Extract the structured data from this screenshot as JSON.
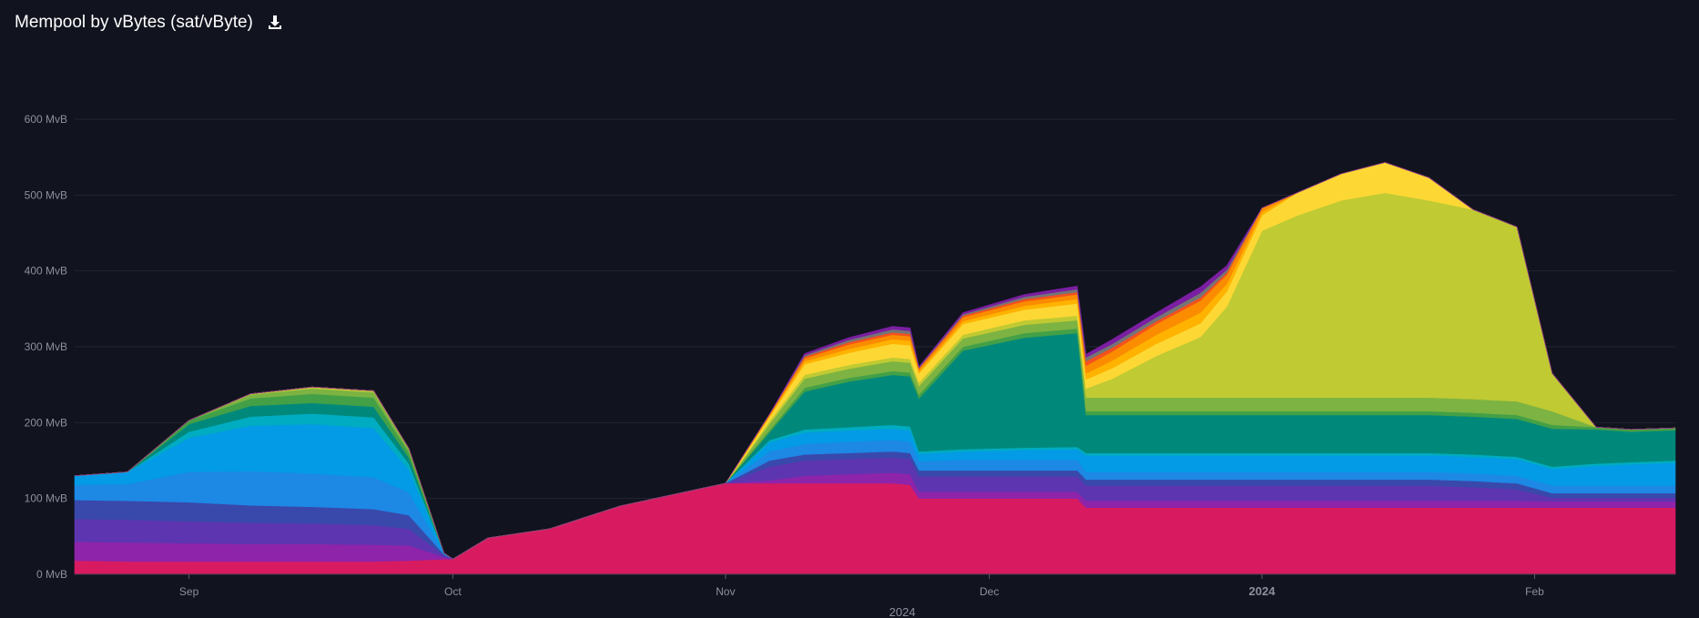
{
  "header": {
    "title": "Mempool by vBytes (sat/vByte)",
    "download_icon": "download-icon"
  },
  "chart_data": {
    "type": "area",
    "stacked": true,
    "title": "Mempool by vBytes (sat/vByte)",
    "xlabel": "2024",
    "ylabel": "",
    "ylim": [
      0,
      600
    ],
    "y_unit": "MvB",
    "y_ticks": [
      "0 MvB",
      "100 MvB",
      "200 MvB",
      "300 MvB",
      "400 MvB",
      "500 MvB",
      "600 MvB"
    ],
    "x_ticks": [
      {
        "label": "Sep",
        "date": "2023-09-01"
      },
      {
        "label": "Oct",
        "date": "2023-10-01"
      },
      {
        "label": "Nov",
        "date": "2023-11-01"
      },
      {
        "label": "Dec",
        "date": "2023-12-01"
      },
      {
        "label": "2024",
        "date": "2024-01-01",
        "bold": true
      },
      {
        "label": "Feb",
        "date": "2024-02-01"
      }
    ],
    "x_range": [
      "2023-08-19",
      "2024-02-17"
    ],
    "grid": true,
    "x": [
      "2023-08-19",
      "2023-08-25",
      "2023-09-01",
      "2023-09-08",
      "2023-09-15",
      "2023-09-22",
      "2023-09-26",
      "2023-09-30",
      "2023-10-01",
      "2023-10-05",
      "2023-10-12",
      "2023-10-20",
      "2023-10-28",
      "2023-11-01",
      "2023-11-06",
      "2023-11-10",
      "2023-11-15",
      "2023-11-20",
      "2023-11-22",
      "2023-11-23",
      "2023-11-28",
      "2023-12-05",
      "2023-12-11",
      "2023-12-12",
      "2023-12-15",
      "2023-12-20",
      "2023-12-25",
      "2023-12-28",
      "2024-01-01",
      "2024-01-05",
      "2024-01-10",
      "2024-01-15",
      "2024-01-20",
      "2024-01-25",
      "2024-01-30",
      "2024-02-03",
      "2024-02-08",
      "2024-02-12",
      "2024-02-17"
    ],
    "series": [
      {
        "color": "#d81b60",
        "values": [
          18,
          17,
          17,
          17,
          17,
          17,
          18,
          20,
          20,
          48,
          60,
          90,
          110,
          120,
          120,
          120,
          120,
          120,
          118,
          100,
          100,
          100,
          100,
          88,
          88,
          88,
          88,
          88,
          88,
          88,
          88,
          88,
          88,
          88,
          88,
          88,
          88,
          88,
          88
        ]
      },
      {
        "color": "#8e24aa",
        "values": [
          25,
          25,
          24,
          23,
          23,
          22,
          20,
          3,
          0,
          0,
          0,
          0,
          0,
          0,
          4,
          10,
          12,
          14,
          14,
          9,
          9,
          9,
          9,
          9,
          9,
          9,
          9,
          9,
          9,
          9,
          9,
          9,
          9,
          9,
          9,
          8,
          8,
          8,
          8
        ]
      },
      {
        "color": "#5e35b1",
        "values": [
          30,
          30,
          29,
          28,
          27,
          26,
          22,
          2,
          0,
          0,
          0,
          0,
          0,
          0,
          18,
          20,
          20,
          20,
          20,
          20,
          20,
          20,
          20,
          20,
          20,
          20,
          20,
          20,
          20,
          20,
          20,
          20,
          20,
          18,
          15,
          5,
          5,
          5,
          5
        ]
      },
      {
        "color": "#3949ab",
        "values": [
          25,
          25,
          25,
          23,
          22,
          21,
          18,
          1,
          0,
          0,
          0,
          0,
          0,
          0,
          8,
          8,
          8,
          8,
          8,
          8,
          8,
          8,
          8,
          8,
          8,
          8,
          8,
          8,
          8,
          8,
          8,
          8,
          8,
          8,
          8,
          6,
          6,
          6,
          6
        ]
      },
      {
        "color": "#1e88e5",
        "values": [
          20,
          22,
          40,
          45,
          44,
          42,
          30,
          1,
          0,
          0,
          0,
          0,
          0,
          0,
          12,
          14,
          15,
          15,
          15,
          12,
          14,
          14,
          14,
          10,
          10,
          10,
          10,
          10,
          10,
          10,
          10,
          10,
          10,
          10,
          10,
          10,
          10,
          10,
          10
        ]
      },
      {
        "color": "#039be5",
        "values": [
          12,
          16,
          45,
          60,
          65,
          65,
          30,
          1,
          0,
          0,
          0,
          0,
          0,
          0,
          12,
          15,
          15,
          15,
          15,
          10,
          11,
          13,
          14,
          22,
          22,
          22,
          22,
          22,
          22,
          22,
          22,
          22,
          22,
          22,
          22,
          22,
          26,
          28,
          30
        ]
      },
      {
        "color": "#00acc1",
        "values": [
          0,
          0,
          8,
          12,
          14,
          14,
          8,
          0,
          0,
          0,
          0,
          0,
          0,
          0,
          3,
          4,
          4,
          5,
          5,
          3,
          3,
          3,
          3,
          3,
          3,
          3,
          3,
          3,
          3,
          3,
          3,
          3,
          3,
          3,
          3,
          3,
          3,
          3,
          3
        ]
      },
      {
        "color": "#00897b",
        "values": [
          0,
          0,
          10,
          14,
          14,
          14,
          8,
          0,
          0,
          0,
          0,
          0,
          0,
          0,
          10,
          50,
          60,
          66,
          66,
          70,
          130,
          145,
          150,
          50,
          50,
          50,
          50,
          50,
          50,
          50,
          50,
          50,
          50,
          50,
          50,
          50,
          45,
          40,
          40
        ]
      },
      {
        "color": "#43a047",
        "values": [
          0,
          0,
          5,
          10,
          12,
          12,
          7,
          0,
          0,
          0,
          0,
          0,
          0,
          0,
          3,
          5,
          5,
          5,
          5,
          5,
          5,
          6,
          6,
          5,
          5,
          5,
          5,
          5,
          5,
          5,
          5,
          5,
          5,
          5,
          5,
          5,
          3,
          3,
          3
        ]
      },
      {
        "color": "#7cb342",
        "values": [
          0,
          0,
          0,
          5,
          7,
          7,
          4,
          0,
          0,
          0,
          0,
          0,
          0,
          0,
          8,
          12,
          12,
          13,
          13,
          11,
          11,
          11,
          11,
          18,
          18,
          18,
          18,
          18,
          18,
          18,
          18,
          18,
          18,
          18,
          18,
          18,
          0,
          0,
          0
        ]
      },
      {
        "color": "#c0ca33",
        "values": [
          0,
          0,
          0,
          1,
          2,
          2,
          1,
          0,
          0,
          0,
          0,
          0,
          0,
          0,
          4,
          5,
          5,
          5,
          5,
          5,
          5,
          6,
          6,
          12,
          25,
          55,
          80,
          120,
          220,
          240,
          260,
          270,
          260,
          250,
          230,
          50,
          0,
          0,
          0
        ]
      },
      {
        "color": "#fdd835",
        "values": [
          0,
          0,
          0,
          0,
          0,
          0,
          0,
          0,
          0,
          0,
          0,
          0,
          0,
          0,
          5,
          14,
          16,
          18,
          18,
          12,
          14,
          14,
          16,
          12,
          14,
          16,
          18,
          20,
          20,
          30,
          35,
          40,
          30,
          0,
          0,
          0,
          0,
          0,
          0
        ]
      },
      {
        "color": "#ffb300",
        "values": [
          0,
          0,
          0,
          0,
          0,
          0,
          0,
          0,
          0,
          0,
          0,
          0,
          0,
          0,
          2,
          4,
          5,
          6,
          6,
          3,
          4,
          5,
          6,
          8,
          10,
          12,
          14,
          10,
          5,
          0,
          0,
          0,
          0,
          0,
          0,
          0,
          0,
          0,
          0
        ]
      },
      {
        "color": "#fb8c00",
        "values": [
          0,
          0,
          0,
          0,
          0,
          0,
          0,
          0,
          0,
          0,
          0,
          0,
          0,
          0,
          2,
          4,
          6,
          6,
          6,
          3,
          5,
          6,
          6,
          10,
          12,
          14,
          16,
          12,
          5,
          0,
          0,
          0,
          0,
          0,
          0,
          0,
          0,
          0,
          0
        ]
      },
      {
        "color": "#f4511e",
        "values": [
          0,
          0,
          0,
          0,
          0,
          0,
          0,
          0,
          0,
          0,
          0,
          0,
          0,
          0,
          0,
          2,
          3,
          3,
          3,
          1,
          2,
          3,
          3,
          6,
          5,
          4,
          4,
          3,
          0,
          0,
          0,
          0,
          0,
          0,
          0,
          0,
          0,
          0,
          0
        ]
      },
      {
        "color": "#757575",
        "values": [
          0,
          0,
          0,
          0,
          0,
          0,
          0,
          0,
          0,
          0,
          0,
          0,
          0,
          0,
          0,
          2,
          3,
          4,
          4,
          1,
          2,
          3,
          4,
          5,
          5,
          5,
          6,
          4,
          0,
          0,
          0,
          0,
          0,
          0,
          0,
          0,
          0,
          0,
          0
        ]
      },
      {
        "color": "#7b1fa2",
        "values": [
          0,
          0,
          0,
          0,
          0,
          0,
          0,
          0,
          0,
          0,
          0,
          0,
          0,
          0,
          0,
          2,
          3,
          4,
          4,
          1,
          2,
          3,
          4,
          4,
          6,
          6,
          8,
          5,
          0,
          0,
          0,
          0,
          0,
          0,
          0,
          0,
          0,
          0,
          0
        ]
      }
    ]
  }
}
